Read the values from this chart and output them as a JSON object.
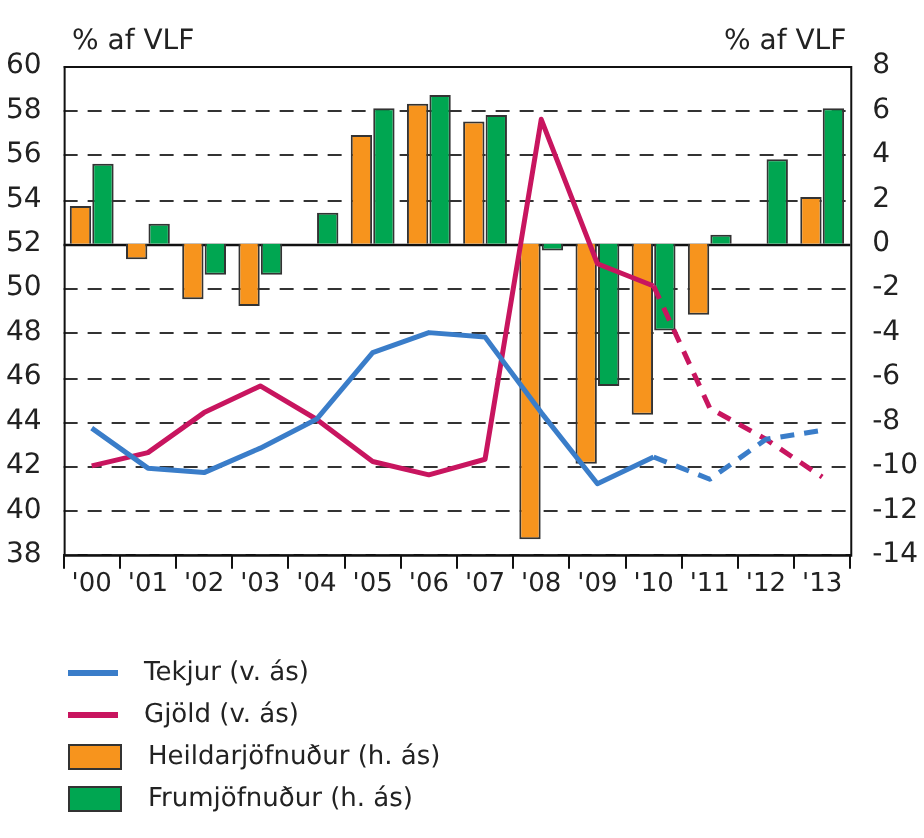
{
  "chart_data": {
    "type": "bar",
    "ylabel": "% af VLF",
    "y2label": "% af VLF",
    "categories": [
      "'00",
      "'01",
      "'02",
      "'03",
      "'04",
      "'05",
      "'06",
      "'07",
      "'08",
      "'09",
      "'10",
      "'11",
      "'12",
      "'13"
    ],
    "series": [
      {
        "name": "Tekjur (v. ás)",
        "type": "line",
        "axis": "y",
        "color": "#3a7dc9",
        "line_style": "solid",
        "values": [
          43.7,
          41.9,
          41.7,
          42.8,
          44.1,
          47.1,
          48.0,
          47.8,
          44.4,
          41.2,
          42.4,
          null,
          null,
          null
        ]
      },
      {
        "type": "line",
        "axis": "y",
        "color": "#3a7dc9",
        "line_style": "dashed",
        "values": [
          null,
          null,
          null,
          null,
          null,
          null,
          null,
          null,
          null,
          null,
          42.4,
          41.4,
          43.2,
          43.6
        ]
      },
      {
        "name": "Gjöld (v. ás)",
        "type": "line",
        "axis": "y",
        "color": "#c8155f",
        "line_style": "solid",
        "values": [
          42.0,
          42.6,
          44.4,
          45.6,
          44.1,
          42.2,
          41.6,
          42.3,
          57.6,
          51.1,
          50.1,
          null,
          null,
          null
        ]
      },
      {
        "type": "line",
        "axis": "y",
        "color": "#c8155f",
        "line_style": "dashed",
        "values": [
          null,
          null,
          null,
          null,
          null,
          null,
          null,
          null,
          null,
          null,
          50.1,
          44.6,
          43.2,
          41.5
        ]
      },
      {
        "name": "Heildarjöfnuður (h. ás)",
        "axis": "y2",
        "color": "#f7941d",
        "values": [
          1.7,
          -0.7,
          -2.5,
          -2.8,
          null,
          4.9,
          6.3,
          5.5,
          -13.3,
          -9.9,
          -7.7,
          -3.2,
          null,
          2.1
        ]
      },
      {
        "name": "Frumjöfnuður (h. ás)",
        "axis": "y2",
        "color": "#00a651",
        "values": [
          3.6,
          0.9,
          -1.4,
          -1.4,
          1.4,
          6.1,
          6.7,
          5.8,
          -0.3,
          -6.4,
          -3.9,
          0.4,
          3.8,
          6.1
        ]
      }
    ],
    "ylim": [
      38,
      60
    ],
    "yticks": [
      38,
      40,
      42,
      44,
      46,
      48,
      50,
      52,
      54,
      56,
      58,
      60
    ],
    "y2lim": [
      -14,
      8
    ],
    "y2ticks": [
      -14,
      -12,
      -10,
      -8,
      -6,
      -4,
      -2,
      0,
      2,
      4,
      6,
      8
    ],
    "grid": "y",
    "legend": "bottom",
    "marker": "none"
  }
}
